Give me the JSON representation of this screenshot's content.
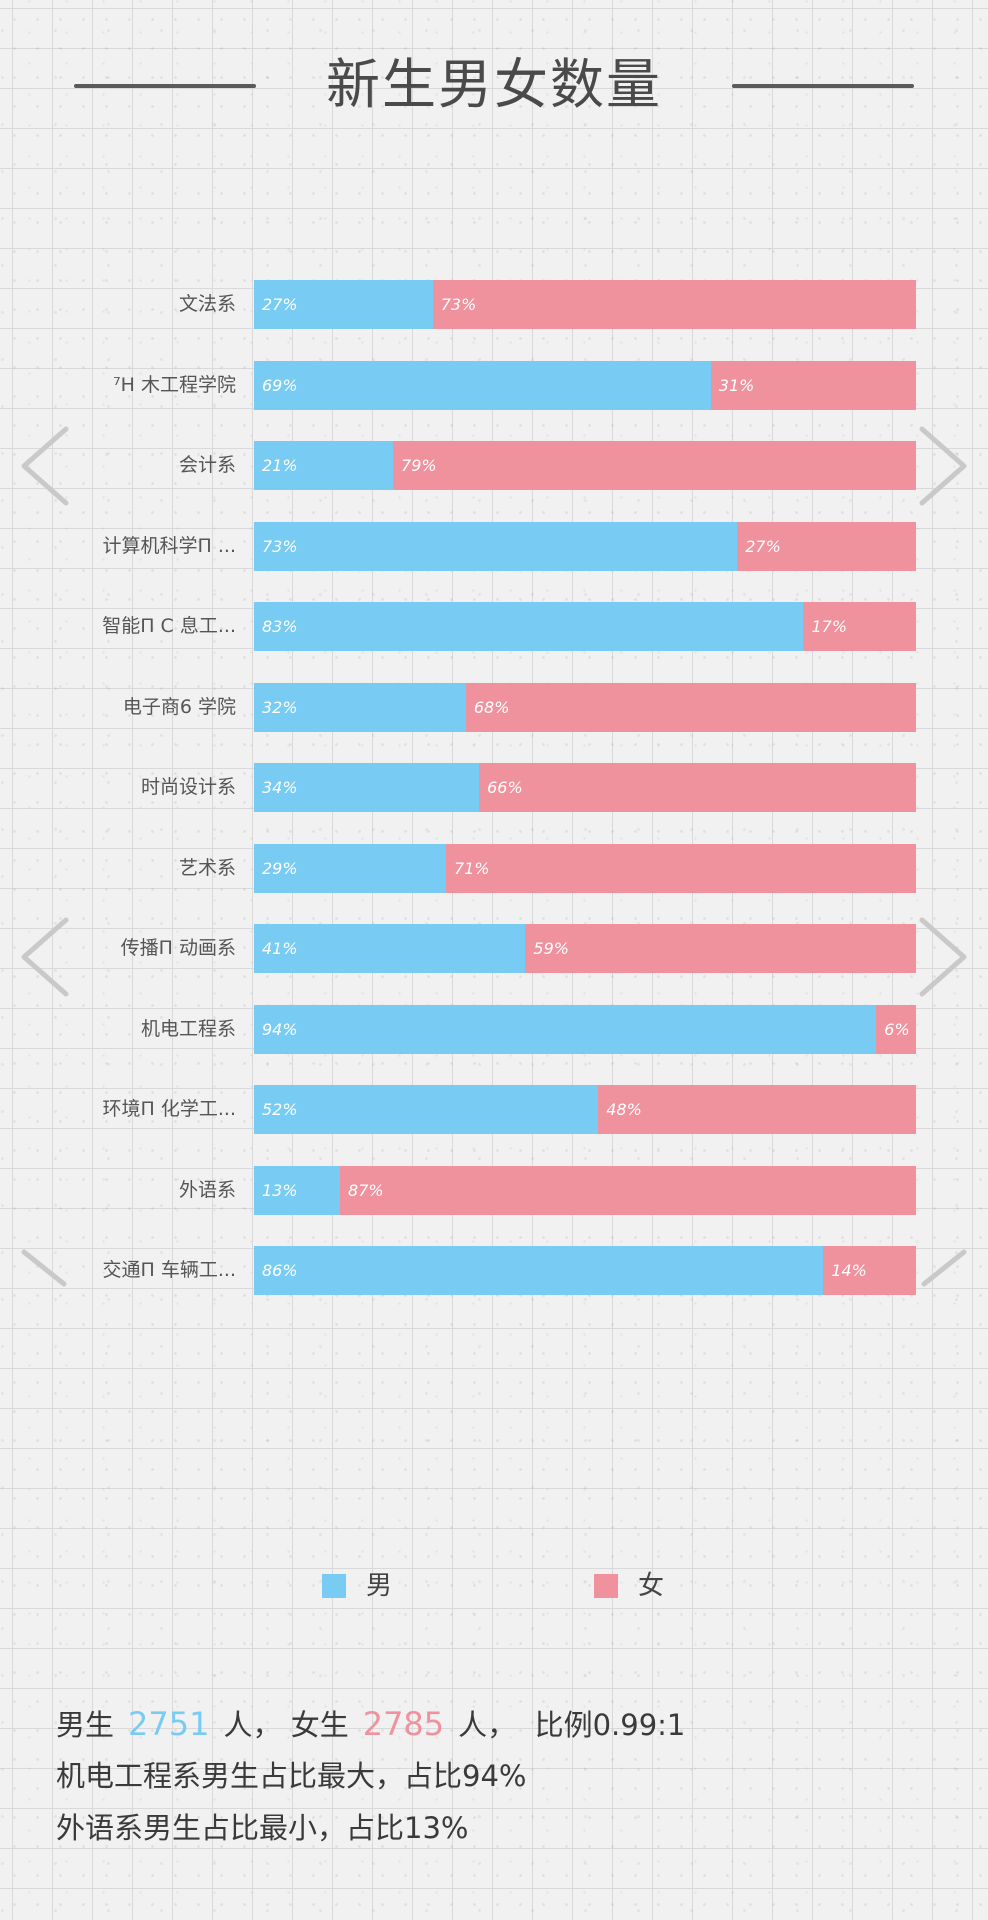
{
  "title": "新生男女数量",
  "colors": {
    "male": "#78ccf3",
    "female": "#f0929e",
    "arrow": "#c9c9c9"
  },
  "chart_data": {
    "type": "bar",
    "orientation": "horizontal",
    "stacked": "percent",
    "categories": [
      "文法系",
      "⁷H 木工程学院",
      "会计系",
      "计算机科学Π ...",
      "智能Π C 息工...",
      "电子商6 学院",
      "时尚设计系",
      "艺术系",
      "传播Π 动画系",
      "机电工程系",
      "环境Π 化学工...",
      "外语系",
      "交通Π 车辆工..."
    ],
    "series": [
      {
        "name": "男",
        "values": [
          27,
          69,
          21,
          73,
          83,
          32,
          34,
          29,
          41,
          94,
          52,
          13,
          86
        ],
        "labels": [
          "27%",
          "69%",
          "21%",
          "73%",
          "83%",
          "32%",
          "34%",
          "29%",
          "41%",
          "94%",
          "52%",
          "13%",
          "86%"
        ]
      },
      {
        "name": "女",
        "values": [
          73,
          31,
          79,
          27,
          17,
          68,
          66,
          71,
          59,
          6,
          48,
          87,
          14
        ],
        "labels": [
          "73%",
          "31%",
          "79%",
          "27%",
          "17%",
          "68%",
          "66%",
          "71%",
          "59%",
          "6%",
          "48%",
          "87%",
          "14%"
        ]
      }
    ],
    "xlim": [
      0,
      100
    ],
    "grid": false,
    "legend_position": "bottom"
  },
  "legend": {
    "male": "男",
    "female": "女"
  },
  "summary": {
    "line1": {
      "male_prefix": "男生",
      "male_count": "2751",
      "male_unit": "人，",
      "female_prefix": "女生",
      "female_count": "2785",
      "female_unit": "人，",
      "ratio": "比例0.99:1"
    },
    "line2": "机电工程系男生占比最大，占比94%",
    "line3": "外语系男生占比最小，占比13%"
  }
}
